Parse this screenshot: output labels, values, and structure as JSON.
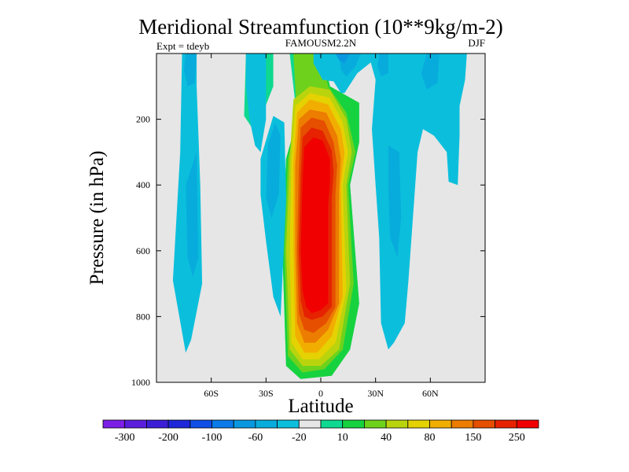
{
  "chart_data": {
    "type": "contour",
    "title": "Meridional Streamfunction (10**9kg/m-2)",
    "left_label": "Expt = tdeyb",
    "center_label": "FAMOUSM2.2N",
    "right_label": "DJF",
    "xlabel": "Latitude",
    "ylabel": "Pressure (in hPa)",
    "xlim": [
      -90,
      90
    ],
    "ylim": [
      1000,
      0
    ],
    "x_ticks": [
      {
        "value": -60,
        "label": "60S"
      },
      {
        "value": -30,
        "label": "30S"
      },
      {
        "value": 0,
        "label": "0"
      },
      {
        "value": 30,
        "label": "30N"
      },
      {
        "value": 60,
        "label": "60N"
      }
    ],
    "y_ticks": [
      200,
      400,
      600,
      800,
      1000
    ],
    "y_tick_labels": [
      "200",
      "400",
      "600",
      "800",
      "1000"
    ],
    "levels": [
      -300,
      -250,
      -200,
      -150,
      -100,
      -80,
      -60,
      -40,
      -20,
      -10,
      10,
      20,
      40,
      60,
      80,
      100,
      150,
      200,
      250,
      300
    ],
    "colorbar_labels": [
      "-300",
      "-200",
      "-100",
      "-60",
      "-20",
      "10",
      "40",
      "80",
      "150",
      "250"
    ],
    "colors": [
      "#7c1ee6",
      "#5a1edc",
      "#3c1ed6",
      "#1e28d8",
      "#0f4fe6",
      "#0a7ae8",
      "#0998e0",
      "#08acdc",
      "#0bbfdc",
      "#e6e6e6",
      "#0fd890",
      "#17d23f",
      "#6ed21c",
      "#b9d40d",
      "#e5d203",
      "#f2ae00",
      "#ec7d00",
      "#e64e00",
      "#e62200",
      "#f00000"
    ],
    "background_color": "#e6e6e6",
    "regions": [
      {
        "level": 10,
        "color": "#0fd890",
        "points": [
          [
            -41,
            0
          ],
          [
            -26,
            0
          ],
          [
            -26,
            100
          ],
          [
            -36,
            240
          ],
          [
            -42,
            190
          ]
        ]
      },
      {
        "level": 10,
        "color": "#0fd890",
        "points": [
          [
            -17,
            0
          ],
          [
            -3,
            0
          ],
          [
            -3,
            20
          ],
          [
            2,
            20
          ],
          [
            5,
            100
          ],
          [
            21,
            150
          ],
          [
            21,
            270
          ],
          [
            16,
            400
          ],
          [
            21,
            760
          ],
          [
            16,
            900
          ],
          [
            6,
            980
          ],
          [
            -11,
            990
          ],
          [
            -19,
            950
          ],
          [
            -21,
            600
          ],
          [
            -19,
            320
          ],
          [
            -13,
            200
          ]
        ]
      },
      {
        "level": 20,
        "color": "#17d23f",
        "points": [
          [
            -15,
            0
          ],
          [
            -3,
            0
          ],
          [
            -3,
            20
          ],
          [
            2,
            20
          ],
          [
            5,
            100
          ],
          [
            21,
            150
          ],
          [
            21,
            270
          ],
          [
            16,
            400
          ],
          [
            21,
            760
          ],
          [
            16,
            900
          ],
          [
            6,
            980
          ],
          [
            -11,
            990
          ],
          [
            -19,
            950
          ],
          [
            -21,
            600
          ],
          [
            -19,
            320
          ],
          [
            -13,
            200
          ]
        ]
      },
      {
        "level": 40,
        "color": "#6ed21c",
        "points": [
          [
            -15,
            0
          ],
          [
            -3,
            0
          ],
          [
            -3,
            20
          ],
          [
            1,
            20
          ],
          [
            4,
            100
          ],
          [
            14,
            180
          ],
          [
            19,
            300
          ],
          [
            15,
            400
          ],
          [
            18,
            700
          ],
          [
            12,
            900
          ],
          [
            2,
            960
          ],
          [
            -10,
            970
          ],
          [
            -18,
            920
          ],
          [
            -20,
            600
          ],
          [
            -18,
            320
          ],
          [
            -13,
            200
          ]
        ]
      },
      {
        "level": 60,
        "color": "#b9d40d",
        "points": [
          [
            -15,
            140
          ],
          [
            -6,
            100
          ],
          [
            5,
            110
          ],
          [
            14,
            200
          ],
          [
            17,
            300
          ],
          [
            14,
            400
          ],
          [
            16,
            700
          ],
          [
            10,
            900
          ],
          [
            0,
            950
          ],
          [
            -10,
            950
          ],
          [
            -17,
            900
          ],
          [
            -19,
            600
          ],
          [
            -17,
            320
          ]
        ]
      },
      {
        "level": 80,
        "color": "#e5d203",
        "points": [
          [
            -14,
            160
          ],
          [
            -6,
            120
          ],
          [
            5,
            135
          ],
          [
            12,
            210
          ],
          [
            15,
            300
          ],
          [
            12,
            400
          ],
          [
            14,
            720
          ],
          [
            8,
            880
          ],
          [
            -1,
            930
          ],
          [
            -10,
            930
          ],
          [
            -16,
            880
          ],
          [
            -17,
            600
          ],
          [
            -16,
            320
          ]
        ]
      },
      {
        "level": 100,
        "color": "#f2ae00",
        "points": [
          [
            -13,
            180
          ],
          [
            -6,
            140
          ],
          [
            4,
            155
          ],
          [
            11,
            230
          ],
          [
            13,
            300
          ],
          [
            11,
            400
          ],
          [
            12,
            740
          ],
          [
            6,
            860
          ],
          [
            -2,
            910
          ],
          [
            -9,
            910
          ],
          [
            -14,
            860
          ],
          [
            -15,
            600
          ],
          [
            -15,
            330
          ]
        ]
      },
      {
        "level": 150,
        "color": "#ec7d00",
        "points": [
          [
            -12,
            200
          ],
          [
            -6,
            170
          ],
          [
            3,
            180
          ],
          [
            9,
            250
          ],
          [
            11,
            320
          ],
          [
            10,
            420
          ],
          [
            10,
            760
          ],
          [
            4,
            840
          ],
          [
            -3,
            880
          ],
          [
            -9,
            880
          ],
          [
            -13,
            820
          ],
          [
            -14,
            600
          ],
          [
            -14,
            340
          ]
        ]
      },
      {
        "level": 200,
        "color": "#e64e00",
        "points": [
          [
            -11,
            225
          ],
          [
            -5,
            195
          ],
          [
            2,
            205
          ],
          [
            7,
            270
          ],
          [
            9,
            340
          ],
          [
            8,
            430
          ],
          [
            8,
            770
          ],
          [
            3,
            820
          ],
          [
            -4,
            850
          ],
          [
            -9,
            840
          ],
          [
            -12,
            790
          ],
          [
            -13,
            600
          ],
          [
            -12,
            350
          ]
        ]
      },
      {
        "level": 250,
        "color": "#e62200",
        "points": [
          [
            -10,
            255
          ],
          [
            -5,
            225
          ],
          [
            1,
            235
          ],
          [
            6,
            295
          ],
          [
            7,
            360
          ],
          [
            6,
            440
          ],
          [
            6,
            770
          ],
          [
            1,
            800
          ],
          [
            -5,
            810
          ],
          [
            -9,
            800
          ],
          [
            -11,
            750
          ],
          [
            -12,
            600
          ],
          [
            -11,
            370
          ]
        ]
      },
      {
        "level": 300,
        "color": "#f00000",
        "points": [
          [
            -9,
            285
          ],
          [
            -4,
            255
          ],
          [
            1,
            265
          ],
          [
            5,
            320
          ],
          [
            5,
            390
          ],
          [
            4,
            460
          ],
          [
            4,
            760
          ],
          [
            0,
            780
          ],
          [
            -5,
            790
          ],
          [
            -8,
            770
          ],
          [
            -10,
            720
          ],
          [
            -11,
            600
          ],
          [
            -10,
            390
          ]
        ]
      },
      {
        "level": -10,
        "color": "#0bbfdc",
        "points": [
          [
            -76,
            0
          ],
          [
            -68,
            0
          ],
          [
            -68,
            100
          ],
          [
            -66,
            400
          ],
          [
            -65,
            700
          ],
          [
            -71,
            870
          ],
          [
            -74,
            910
          ],
          [
            -81,
            690
          ],
          [
            -77,
            300
          ]
        ]
      },
      {
        "level": -10,
        "color": "#0bbfdc",
        "points": [
          [
            -41,
            0
          ],
          [
            -30,
            0
          ],
          [
            -30,
            200
          ],
          [
            -33,
            300
          ],
          [
            -36,
            280
          ],
          [
            -39,
            200
          ],
          [
            -41,
            100
          ]
        ]
      },
      {
        "level": -10,
        "color": "#0bbfdc",
        "points": [
          [
            -33,
            320
          ],
          [
            -26,
            190
          ],
          [
            -20,
            210
          ],
          [
            -19,
            440
          ],
          [
            -21,
            680
          ],
          [
            -22,
            800
          ],
          [
            -26,
            740
          ],
          [
            -30,
            570
          ],
          [
            -33,
            430
          ]
        ]
      },
      {
        "level": -10,
        "color": "#0bbfdc",
        "points": [
          [
            -4,
            0
          ],
          [
            30,
            0
          ],
          [
            29,
            20
          ],
          [
            20,
            60
          ],
          [
            13,
            120
          ],
          [
            11,
            120
          ],
          [
            7,
            85
          ],
          [
            1,
            80
          ],
          [
            -4,
            30
          ]
        ]
      },
      {
        "level": -10,
        "color": "#0bbfdc",
        "points": [
          [
            26,
            0
          ],
          [
            80,
            0
          ],
          [
            79,
            80
          ],
          [
            76,
            160
          ],
          [
            76,
            250
          ],
          [
            75,
            400
          ],
          [
            70,
            390
          ],
          [
            69,
            300
          ],
          [
            62,
            250
          ],
          [
            56,
            230
          ],
          [
            53,
            300
          ],
          [
            48,
            690
          ],
          [
            46,
            820
          ],
          [
            40,
            880
          ],
          [
            37,
            900
          ],
          [
            33,
            820
          ],
          [
            32,
            560
          ],
          [
            30,
            400
          ],
          [
            28,
            230
          ],
          [
            30,
            80
          ]
        ]
      },
      {
        "level": -20,
        "color": "#08acdc",
        "points": [
          [
            -74,
            0
          ],
          [
            -68,
            0
          ],
          [
            -69,
            90
          ],
          [
            -73,
            100
          ],
          [
            -75,
            50
          ]
        ]
      },
      {
        "level": -20,
        "color": "#08acdc",
        "points": [
          [
            -74,
            400
          ],
          [
            -68,
            300
          ],
          [
            -67,
            620
          ],
          [
            -70,
            680
          ],
          [
            -73,
            620
          ]
        ]
      },
      {
        "level": -20,
        "color": "#08acdc",
        "points": [
          [
            -29,
            280
          ],
          [
            -25,
            210
          ],
          [
            -22,
            250
          ],
          [
            -23,
            430
          ],
          [
            -27,
            500
          ],
          [
            -30,
            440
          ]
        ]
      },
      {
        "level": -20,
        "color": "#08acdc",
        "points": [
          [
            10,
            0
          ],
          [
            22,
            0
          ],
          [
            19,
            40
          ],
          [
            14,
            70
          ],
          [
            11,
            50
          ]
        ]
      },
      {
        "level": -20,
        "color": "#08acdc",
        "points": [
          [
            32,
            0
          ],
          [
            37,
            0
          ],
          [
            37,
            60
          ],
          [
            33,
            70
          ],
          [
            31,
            40
          ]
        ]
      },
      {
        "level": -20,
        "color": "#08acdc",
        "points": [
          [
            58,
            0
          ],
          [
            65,
            0
          ],
          [
            64,
            90
          ],
          [
            58,
            110
          ],
          [
            55,
            60
          ]
        ]
      },
      {
        "level": -20,
        "color": "#08acdc",
        "points": [
          [
            37,
            280
          ],
          [
            43,
            300
          ],
          [
            44,
            500
          ],
          [
            42,
            620
          ],
          [
            38,
            560
          ],
          [
            37,
            420
          ]
        ]
      },
      {
        "level": -40,
        "color": "#0998e0",
        "points": [
          [
            8,
            0
          ],
          [
            16,
            0
          ],
          [
            13,
            30
          ],
          [
            10,
            20
          ]
        ]
      }
    ]
  }
}
